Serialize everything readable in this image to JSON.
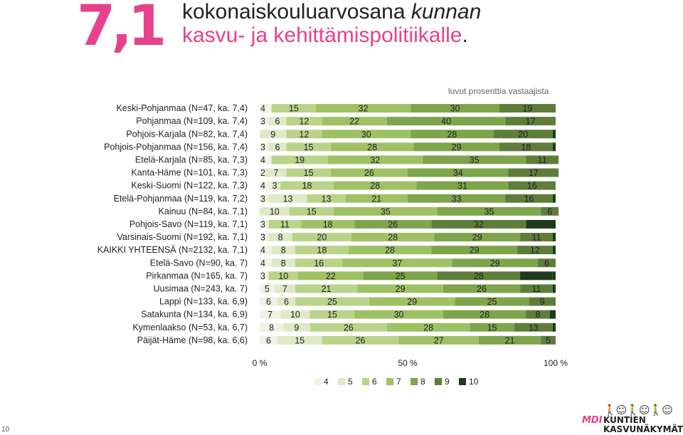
{
  "header": {
    "score": "7,1",
    "title_part1": "kokonaiskouluarvosana ",
    "title_part1_em": "kunnan",
    "title_part2": "kasvu- ja kehittämispolitiikalle",
    "title_part2_end": "."
  },
  "note": "luvut prosenttia vastaajista",
  "page_number": "10",
  "logo": {
    "figures": "🚶☺🚶☺🚶☺",
    "mdi": "MDI",
    "name1": "KUNTIEN",
    "name2": "KASVUNÄKYMÄT"
  },
  "chart_data": {
    "type": "bar",
    "stacked": true,
    "orientation": "horizontal",
    "normalized": true,
    "xlim": [
      0,
      100
    ],
    "x_ticks": [
      "0 %",
      "50 %",
      "100 %"
    ],
    "legend_position": "bottom",
    "categories": [
      "Keski-Pohjanmaa (N=47, ka. 7,4)",
      "Pohjanmaa (N=109, ka. 7,4)",
      "Pohjois-Karjala (N=82, ka. 7,4)",
      "Pohjois-Pohjanmaa (N=156, ka. 7,4)",
      "Etelä-Karjala (N=85, ka. 7,3)",
      "Kanta-Häme (N=101, ka. 7,3)",
      "Keski-Suomi (N=122, ka. 7,3)",
      "Etelä-Pohjanmaa (N=119, ka. 7,2)",
      "Kainuu (N=84, ka. 7,1)",
      "Pohjois-Savo (N=119, ka. 7,1)",
      "Varsinais-Suomi (N=192, ka. 7,1)",
      "KAIKKI YHTEENSÄ (N=2132, ka. 7,1)",
      "Etelä-Savo (N=90, ka. 7)",
      "Pirkanmaa (N=165, ka. 7)",
      "Uusimaa (N=243, ka. 7)",
      "Lappi (N=133, ka. 6,9)",
      "Satakunta (N=134, ka. 6,9)",
      "Kymenlaakso (N=53, ka. 6,7)",
      "Päijät-Häme (N=98, ka. 6,6)"
    ],
    "series": [
      {
        "name": "4",
        "color": "#f2f2e4",
        "values": [
          4,
          3,
          0,
          3,
          4,
          2,
          4,
          3,
          0,
          3,
          3,
          4,
          4,
          3,
          5,
          6,
          7,
          8,
          6
        ]
      },
      {
        "name": "5",
        "color": "#dfe9c6",
        "values": [
          0,
          6,
          9,
          6,
          0,
          7,
          3,
          13,
          10,
          0,
          8,
          8,
          8,
          0,
          7,
          6,
          10,
          9,
          15
        ]
      },
      {
        "name": "6",
        "color": "#b9d48a",
        "values": [
          15,
          12,
          12,
          15,
          19,
          15,
          18,
          13,
          15,
          11,
          20,
          18,
          16,
          10,
          21,
          25,
          15,
          26,
          26
        ]
      },
      {
        "name": "7",
        "color": "#9fc165",
        "values": [
          32,
          22,
          30,
          28,
          32,
          26,
          28,
          21,
          35,
          18,
          28,
          28,
          37,
          22,
          29,
          29,
          30,
          28,
          27
        ]
      },
      {
        "name": "8",
        "color": "#7ea44c",
        "values": [
          30,
          40,
          28,
          29,
          35,
          34,
          31,
          33,
          35,
          26,
          29,
          29,
          29,
          25,
          26,
          25,
          28,
          15,
          21
        ]
      },
      {
        "name": "9",
        "color": "#5e7d3b",
        "values": [
          19,
          17,
          20,
          18,
          11,
          17,
          16,
          16,
          6,
          32,
          11,
          12,
          6,
          28,
          11,
          9,
          8,
          13,
          5
        ]
      },
      {
        "name": "10",
        "color": "#1d3b1c",
        "values": [
          0,
          0,
          0,
          0,
          0,
          0,
          0,
          0,
          0,
          10,
          0,
          0,
          0,
          11,
          0,
          0,
          0,
          0,
          0
        ]
      }
    ],
    "value_labels": [
      [
        "4",
        "15",
        "32",
        "30",
        "19"
      ],
      [
        "3",
        "6",
        "12",
        "22",
        "40",
        "17"
      ],
      [
        "9",
        "12",
        "30",
        "28",
        "20"
      ],
      [
        "3",
        "6",
        "15",
        "28",
        "29",
        "18"
      ],
      [
        "4",
        "19",
        "32",
        "35",
        "11"
      ],
      [
        "2",
        "7",
        "15",
        "26",
        "34",
        "17"
      ],
      [
        "4",
        "3",
        "18",
        "28",
        "31",
        "16"
      ],
      [
        "3",
        "13",
        "13",
        "21",
        "33",
        "16"
      ],
      [
        "10",
        "15",
        "35",
        "35",
        "6"
      ],
      [
        "3",
        "11",
        "18",
        "26",
        "32",
        "10"
      ],
      [
        "3",
        "8",
        "20",
        "28",
        "29",
        "11"
      ],
      [
        "4",
        "8",
        "18",
        "28",
        "29",
        "12"
      ],
      [
        "4",
        "8",
        "16",
        "37",
        "29",
        "6"
      ],
      [
        "3",
        "10",
        "22",
        "25",
        "28",
        "11"
      ],
      [
        "5",
        "7",
        "21",
        "29",
        "26",
        "11"
      ],
      [
        "6",
        "6",
        "25",
        "29",
        "25",
        "9"
      ],
      [
        "7",
        "10",
        "15",
        "30",
        "28",
        "8"
      ],
      [
        "8",
        "9",
        "26",
        "28",
        "15",
        "13"
      ],
      [
        "6",
        "15",
        "26",
        "27",
        "21",
        "5"
      ]
    ]
  }
}
